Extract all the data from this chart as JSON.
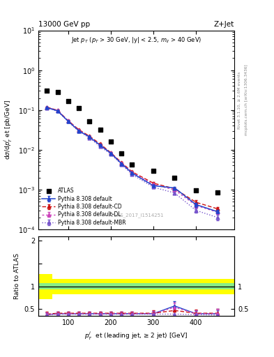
{
  "title_left": "13000 GeV pp",
  "title_right": "Z+Jet",
  "subtitle": "Jet $p_T$ ($p_T$ > 30 GeV, |y| < 2.5, $m_{ll}$ > 40 GeV)",
  "atlas_label": "ATLAS_2017_I1514251",
  "right_label1": "Rivet 3.1.10, ≥ 2.6M events",
  "right_label2": "mcplots.cern.ch [arXiv:1306.3436]",
  "xlabel": "$p_{T}^{j}$  et (leading jet, ≥ 2 jet) [GeV]",
  "ylabel_main": "dσ/d$p_{T}^{j}$ et [pb/GeV]",
  "ylabel_ratio": "Ratio to ATLAS",
  "xlim": [
    30,
    490
  ],
  "ylim_main": [
    0.0001,
    10
  ],
  "ylim_ratio": [
    0.35,
    2.1
  ],
  "atlas_x": [
    50,
    75,
    100,
    125,
    150,
    175,
    200,
    225,
    250,
    300,
    350,
    400,
    450
  ],
  "atlas_y": [
    0.3,
    0.28,
    0.17,
    0.11,
    0.052,
    0.032,
    0.016,
    0.008,
    0.0042,
    0.003,
    0.002,
    0.00095,
    0.00085
  ],
  "pythia_default_x": [
    50,
    75,
    100,
    125,
    150,
    175,
    200,
    225,
    250,
    300,
    350,
    400,
    450
  ],
  "pythia_default_y": [
    0.115,
    0.095,
    0.052,
    0.03,
    0.021,
    0.013,
    0.0082,
    0.0045,
    0.0026,
    0.00125,
    0.0011,
    0.00042,
    0.00028
  ],
  "pythia_default_yerr": [
    0.003,
    0.003,
    0.002,
    0.001,
    0.001,
    0.0005,
    0.0003,
    0.0002,
    0.0001,
    6e-05,
    8e-05,
    5e-05,
    3e-05
  ],
  "pythia_cd_x": [
    50,
    75,
    100,
    125,
    150,
    175,
    200,
    225,
    250,
    300,
    350,
    400,
    450
  ],
  "pythia_cd_y": [
    0.118,
    0.098,
    0.054,
    0.032,
    0.022,
    0.014,
    0.0085,
    0.0048,
    0.0028,
    0.00145,
    0.00105,
    0.00048,
    0.00033
  ],
  "pythia_cd_yerr": [
    0.003,
    0.003,
    0.002,
    0.001,
    0.001,
    0.0005,
    0.0003,
    0.0002,
    0.0001,
    7e-05,
    8e-05,
    6e-05,
    4e-05
  ],
  "pythia_dl_x": [
    50,
    75,
    100,
    125,
    150,
    175,
    200,
    225,
    250,
    300,
    350,
    400,
    450
  ],
  "pythia_dl_y": [
    0.117,
    0.097,
    0.053,
    0.031,
    0.021,
    0.013,
    0.0083,
    0.0046,
    0.0027,
    0.00135,
    0.00098,
    0.0004,
    0.00027
  ],
  "pythia_dl_yerr": [
    0.003,
    0.003,
    0.002,
    0.001,
    0.001,
    0.0005,
    0.0003,
    0.0002,
    0.0001,
    7e-05,
    7e-05,
    5e-05,
    3e-05
  ],
  "pythia_mbr_x": [
    50,
    75,
    100,
    125,
    150,
    175,
    200,
    225,
    250,
    300,
    350,
    400,
    450
  ],
  "pythia_mbr_y": [
    0.113,
    0.093,
    0.051,
    0.029,
    0.02,
    0.012,
    0.0078,
    0.0043,
    0.0024,
    0.00115,
    0.00082,
    0.0003,
    0.0002
  ],
  "pythia_mbr_yerr": [
    0.003,
    0.003,
    0.002,
    0.001,
    0.001,
    0.0005,
    0.0003,
    0.0002,
    0.0001,
    6e-05,
    6e-05,
    4e-05,
    3e-05
  ],
  "atlas_color": "black",
  "pythia_default_color": "#2244cc",
  "pythia_cd_color": "#cc1111",
  "pythia_dl_color": "#cc44bb",
  "pythia_mbr_color": "#7755cc",
  "yellow_edges": [
    30,
    62,
    490
  ],
  "yellow_lo": [
    0.72,
    0.83
  ],
  "yellow_hi": [
    1.27,
    1.17
  ],
  "green_lo": 0.93,
  "green_hi": 1.07,
  "ratio_default_y": [
    0.38,
    0.4,
    0.4,
    0.4,
    0.4,
    0.4,
    0.4,
    0.4,
    0.4,
    0.4,
    0.57,
    0.4,
    0.4
  ],
  "ratio_default_yerr": [
    0.05,
    0.04,
    0.04,
    0.04,
    0.04,
    0.04,
    0.04,
    0.04,
    0.04,
    0.06,
    0.1,
    0.08,
    0.1
  ],
  "ratio_cd_y": [
    0.39,
    0.41,
    0.41,
    0.41,
    0.41,
    0.41,
    0.41,
    0.41,
    0.41,
    0.41,
    0.47,
    0.41,
    0.41
  ],
  "ratio_cd_yerr": [
    0.05,
    0.04,
    0.04,
    0.04,
    0.04,
    0.04,
    0.04,
    0.04,
    0.04,
    0.06,
    0.1,
    0.08,
    0.1
  ],
  "ratio_dl_y": [
    0.38,
    0.4,
    0.4,
    0.4,
    0.4,
    0.4,
    0.4,
    0.4,
    0.4,
    0.4,
    0.54,
    0.4,
    0.4
  ],
  "ratio_dl_yerr": [
    0.05,
    0.04,
    0.04,
    0.04,
    0.04,
    0.04,
    0.04,
    0.04,
    0.04,
    0.06,
    0.1,
    0.08,
    0.1
  ],
  "ratio_mbr_y": [
    0.37,
    0.39,
    0.39,
    0.39,
    0.39,
    0.39,
    0.39,
    0.39,
    0.39,
    0.39,
    0.39,
    0.38,
    0.37
  ],
  "ratio_mbr_yerr": [
    0.05,
    0.04,
    0.04,
    0.04,
    0.04,
    0.04,
    0.04,
    0.04,
    0.04,
    0.06,
    0.09,
    0.08,
    0.1
  ]
}
